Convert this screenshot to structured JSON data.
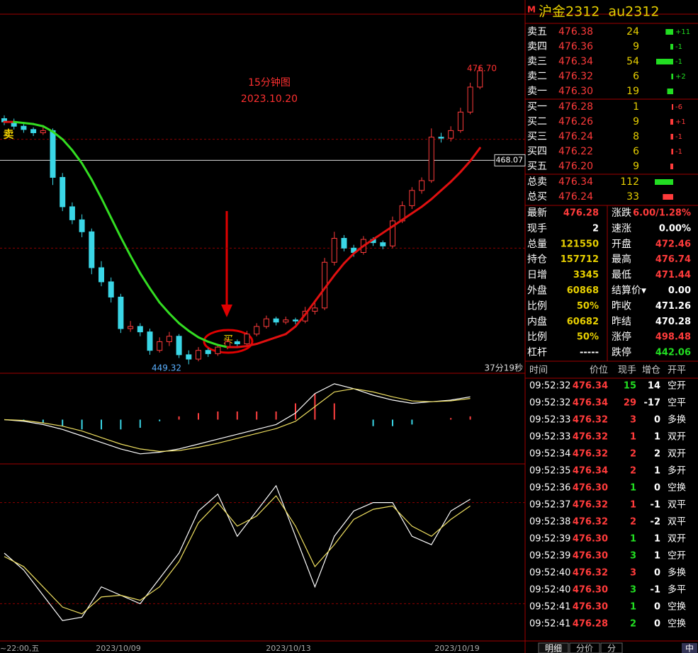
{
  "title": {
    "badge": "M",
    "name": "沪金2312  au2312"
  },
  "kline": {
    "ylim": [
      448.5,
      481.5
    ],
    "gridlines": [
      470,
      460
    ],
    "ref": {
      "value": 468.07,
      "label": "468.07"
    },
    "candles": [
      [
        471.9,
        472.2,
        471.3,
        471.6
      ],
      [
        471.6,
        471.9,
        470.9,
        471.2
      ],
      [
        471.2,
        471.4,
        470.6,
        470.9
      ],
      [
        470.9,
        471.1,
        470.3,
        470.6
      ],
      [
        470.6,
        471.3,
        470.4,
        470.8
      ],
      [
        470.8,
        471.0,
        465.8,
        466.5
      ],
      [
        466.5,
        466.9,
        463.4,
        463.8
      ],
      [
        463.8,
        464.2,
        462.2,
        462.6
      ],
      [
        462.6,
        463.1,
        461.0,
        461.5
      ],
      [
        461.5,
        461.8,
        457.6,
        458.2
      ],
      [
        458.2,
        458.8,
        456.5,
        456.9
      ],
      [
        456.9,
        457.3,
        455.0,
        455.5
      ],
      [
        455.5,
        455.8,
        452.2,
        452.6
      ],
      [
        452.6,
        453.3,
        452.3,
        452.8
      ],
      [
        452.8,
        453.1,
        451.9,
        452.3
      ],
      [
        452.3,
        452.6,
        450.2,
        450.6
      ],
      [
        450.6,
        451.8,
        450.4,
        451.4
      ],
      [
        451.4,
        452.3,
        451.0,
        451.9
      ],
      [
        451.9,
        452.1,
        449.9,
        450.2
      ],
      [
        450.2,
        450.6,
        449.32,
        449.8
      ],
      [
        449.8,
        450.9,
        449.6,
        450.6
      ],
      [
        450.6,
        450.8,
        450.0,
        450.3
      ],
      [
        450.3,
        451.2,
        450.1,
        450.9
      ],
      [
        450.9,
        451.7,
        450.7,
        451.4
      ],
      [
        451.4,
        451.6,
        450.9,
        451.2
      ],
      [
        451.2,
        452.4,
        451.0,
        452.1
      ],
      [
        452.1,
        453.1,
        451.9,
        452.8
      ],
      [
        452.8,
        453.8,
        452.6,
        453.5
      ],
      [
        453.5,
        453.7,
        452.9,
        453.2
      ],
      [
        453.2,
        453.7,
        453.0,
        453.4
      ],
      [
        453.4,
        453.6,
        453.0,
        453.3
      ],
      [
        453.3,
        454.6,
        453.1,
        454.2
      ],
      [
        454.2,
        455.1,
        453.9,
        454.5
      ],
      [
        454.5,
        459.1,
        454.3,
        458.7
      ],
      [
        458.7,
        461.5,
        458.4,
        460.9
      ],
      [
        460.9,
        461.2,
        459.7,
        460.0
      ],
      [
        460.0,
        460.3,
        459.2,
        459.6
      ],
      [
        459.6,
        461.1,
        459.4,
        460.8
      ],
      [
        460.8,
        461.0,
        460.2,
        460.5
      ],
      [
        460.5,
        460.7,
        459.9,
        460.2
      ],
      [
        460.2,
        462.9,
        460.0,
        462.5
      ],
      [
        462.5,
        464.3,
        462.3,
        463.9
      ],
      [
        463.9,
        465.6,
        463.6,
        465.3
      ],
      [
        465.3,
        466.5,
        465.0,
        466.2
      ],
      [
        466.2,
        471.0,
        466.0,
        470.2
      ],
      [
        470.2,
        470.6,
        469.7,
        470.1
      ],
      [
        470.1,
        471.2,
        469.8,
        470.8
      ],
      [
        470.8,
        472.9,
        470.6,
        472.5
      ],
      [
        472.5,
        475.2,
        472.3,
        474.8
      ],
      [
        474.8,
        476.7,
        474.6,
        476.3
      ]
    ],
    "ma": [
      471.6,
      471.6,
      471.5,
      471.4,
      471.2,
      470.7,
      470.0,
      469.0,
      467.8,
      466.3,
      464.6,
      462.8,
      461.0,
      459.3,
      457.7,
      456.3,
      455.0,
      454.0,
      453.1,
      452.4,
      451.8,
      451.4,
      451.1,
      450.9,
      450.9,
      451.0,
      451.2,
      451.5,
      451.8,
      452.1,
      452.8,
      453.9,
      455.1,
      456.3,
      457.5,
      458.6,
      459.5,
      460.2,
      460.8,
      461.4,
      462.0,
      462.6,
      463.2,
      463.8,
      464.5,
      465.3,
      466.1,
      467.0,
      468.0,
      469.2
    ],
    "high_label": "476.70",
    "low_label": "449.32",
    "caption": [
      "15分钟图",
      "2023.10.20"
    ],
    "signals": [
      "卖",
      "买"
    ],
    "timer": "37分19秒"
  },
  "macd": {
    "ylim": [
      -2.5,
      2.5
    ],
    "dif": [
      0,
      -0.1,
      -0.3,
      -0.6,
      -1.0,
      -1.4,
      -1.8,
      -2.1,
      -2.0,
      -1.8,
      -1.5,
      -1.2,
      -0.9,
      -0.6,
      -0.3,
      0.4,
      1.6,
      2.2,
      1.9,
      1.5,
      1.2,
      1.0,
      1.1,
      1.2,
      1.4
    ],
    "dea": [
      0,
      -0.05,
      -0.2,
      -0.4,
      -0.7,
      -1.1,
      -1.5,
      -1.8,
      -1.95,
      -1.9,
      -1.7,
      -1.45,
      -1.15,
      -0.85,
      -0.55,
      -0.1,
      0.8,
      1.7,
      1.9,
      1.7,
      1.4,
      1.15,
      1.1,
      1.15,
      1.3
    ],
    "hist": [
      0,
      -0.1,
      -0.2,
      -0.4,
      -0.6,
      -0.6,
      -0.6,
      -0.5,
      -0.1,
      0.2,
      0.4,
      0.5,
      0.5,
      0.5,
      0.5,
      1.0,
      1.6,
      1.0,
      0,
      -0.4,
      -0.4,
      -0.3,
      0,
      0.1,
      0.2
    ]
  },
  "kdj": {
    "ylim": [
      0,
      100
    ],
    "levels": [
      80,
      20
    ],
    "k": [
      50,
      40,
      25,
      10,
      12,
      30,
      25,
      20,
      35,
      50,
      75,
      85,
      60,
      75,
      90,
      60,
      30,
      60,
      75,
      80,
      80,
      60,
      55,
      75,
      82
    ],
    "d": [
      48,
      42,
      30,
      18,
      14,
      24,
      25,
      22,
      30,
      45,
      68,
      80,
      66,
      72,
      84,
      66,
      42,
      55,
      70,
      76,
      78,
      66,
      60,
      70,
      78
    ]
  },
  "x_axis": [
    "~22:00,五",
    "2023/10/09",
    "2023/10/13",
    "2023/10/19"
  ],
  "book": {
    "sell": [
      {
        "label": "卖五",
        "price": "476.38",
        "volume": 24,
        "change": "+11"
      },
      {
        "label": "卖四",
        "price": "476.36",
        "volume": 9,
        "change": "-1"
      },
      {
        "label": "卖三",
        "price": "476.34",
        "volume": 54,
        "change": "-1"
      },
      {
        "label": "卖二",
        "price": "476.32",
        "volume": 6,
        "change": "+2"
      },
      {
        "label": "卖一",
        "price": "476.30",
        "volume": 19
      }
    ],
    "buy": [
      {
        "label": "买一",
        "price": "476.28",
        "volume": 1,
        "change": "-6"
      },
      {
        "label": "买二",
        "price": "476.26",
        "volume": 9,
        "change": "+1"
      },
      {
        "label": "买三",
        "price": "476.24",
        "volume": 8,
        "change": "-1"
      },
      {
        "label": "买四",
        "price": "476.22",
        "volume": 6,
        "change": "-1"
      },
      {
        "label": "买五",
        "price": "476.20",
        "volume": 9
      }
    ],
    "totals": [
      {
        "label": "总卖",
        "price": "476.34",
        "volume": 112
      },
      {
        "label": "总买",
        "price": "476.24",
        "volume": 33
      }
    ]
  },
  "stats": [
    {
      "cells": [
        "最新",
        "476.28",
        "涨跌",
        "6.00/1.28%"
      ],
      "colors": [
        "red",
        "red"
      ]
    },
    {
      "cells": [
        "现手",
        "2",
        "速涨",
        "0.00%"
      ],
      "colors": [
        "white",
        "white"
      ]
    },
    {
      "cells": [
        "总量",
        "121550",
        "开盘",
        "472.46"
      ],
      "colors": [
        "yellow",
        "red"
      ]
    },
    {
      "cells": [
        "持仓",
        "157712",
        "最高",
        "476.74"
      ],
      "colors": [
        "yellow",
        "red"
      ]
    },
    {
      "cells": [
        "日增",
        "3345",
        "最低",
        "471.44"
      ],
      "colors": [
        "yellow",
        "red"
      ]
    },
    {
      "cells": [
        "外盘",
        "60868",
        "结算价▾",
        "0.00"
      ],
      "colors": [
        "yellow",
        "white"
      ]
    },
    {
      "cells": [
        "比例",
        "50%",
        "昨收",
        "471.26"
      ],
      "colors": [
        "yellow",
        "white"
      ]
    },
    {
      "cells": [
        "内盘",
        "60682",
        "昨结",
        "470.28"
      ],
      "colors": [
        "yellow",
        "white"
      ]
    },
    {
      "cells": [
        "比例",
        "50%",
        "涨停",
        "498.48"
      ],
      "colors": [
        "yellow",
        "red"
      ]
    },
    {
      "cells": [
        "杠杆",
        "-----",
        "跌停",
        "442.06"
      ],
      "colors": [
        "white",
        "green"
      ]
    }
  ],
  "trades": {
    "header": [
      "时间",
      "价位",
      "现手",
      "增仓",
      "开平"
    ],
    "rows": [
      {
        "cells": [
          "09:52:32",
          "476.34",
          "15",
          "14",
          "空开"
        ],
        "color": "green"
      },
      {
        "cells": [
          "09:52:32",
          "476.34",
          "29",
          "-17",
          "空平"
        ],
        "color": "red"
      },
      {
        "cells": [
          "09:52:33",
          "476.32",
          "3",
          "0",
          "多换"
        ],
        "color": "red"
      },
      {
        "cells": [
          "09:52:33",
          "476.32",
          "1",
          "1",
          "双开"
        ],
        "color": "red"
      },
      {
        "cells": [
          "09:52:34",
          "476.32",
          "2",
          "2",
          "双开"
        ],
        "color": "red"
      },
      {
        "cells": [
          "09:52:35",
          "476.34",
          "2",
          "1",
          "多开"
        ],
        "color": "red"
      },
      {
        "cells": [
          "09:52:36",
          "476.30",
          "1",
          "0",
          "空换"
        ],
        "color": "green"
      },
      {
        "cells": [
          "09:52:37",
          "476.32",
          "1",
          "-1",
          "双平"
        ],
        "color": "red"
      },
      {
        "cells": [
          "09:52:38",
          "476.32",
          "2",
          "-2",
          "双平"
        ],
        "color": "red"
      },
      {
        "cells": [
          "09:52:39",
          "476.30",
          "1",
          "1",
          "双开"
        ],
        "color": "green"
      },
      {
        "cells": [
          "09:52:39",
          "476.30",
          "3",
          "1",
          "空开"
        ],
        "color": "green"
      },
      {
        "cells": [
          "09:52:40",
          "476.32",
          "3",
          "0",
          "多换"
        ],
        "color": "red"
      },
      {
        "cells": [
          "09:52:40",
          "476.30",
          "3",
          "-1",
          "多平"
        ],
        "color": "green"
      },
      {
        "cells": [
          "09:52:41",
          "476.30",
          "1",
          "0",
          "空换"
        ],
        "color": "green"
      },
      {
        "cells": [
          "09:52:41",
          "476.28",
          "2",
          "0",
          "空换"
        ],
        "color": "green"
      }
    ]
  },
  "tabs": [
    "明细",
    "分价",
    "分"
  ],
  "corner": "中"
}
